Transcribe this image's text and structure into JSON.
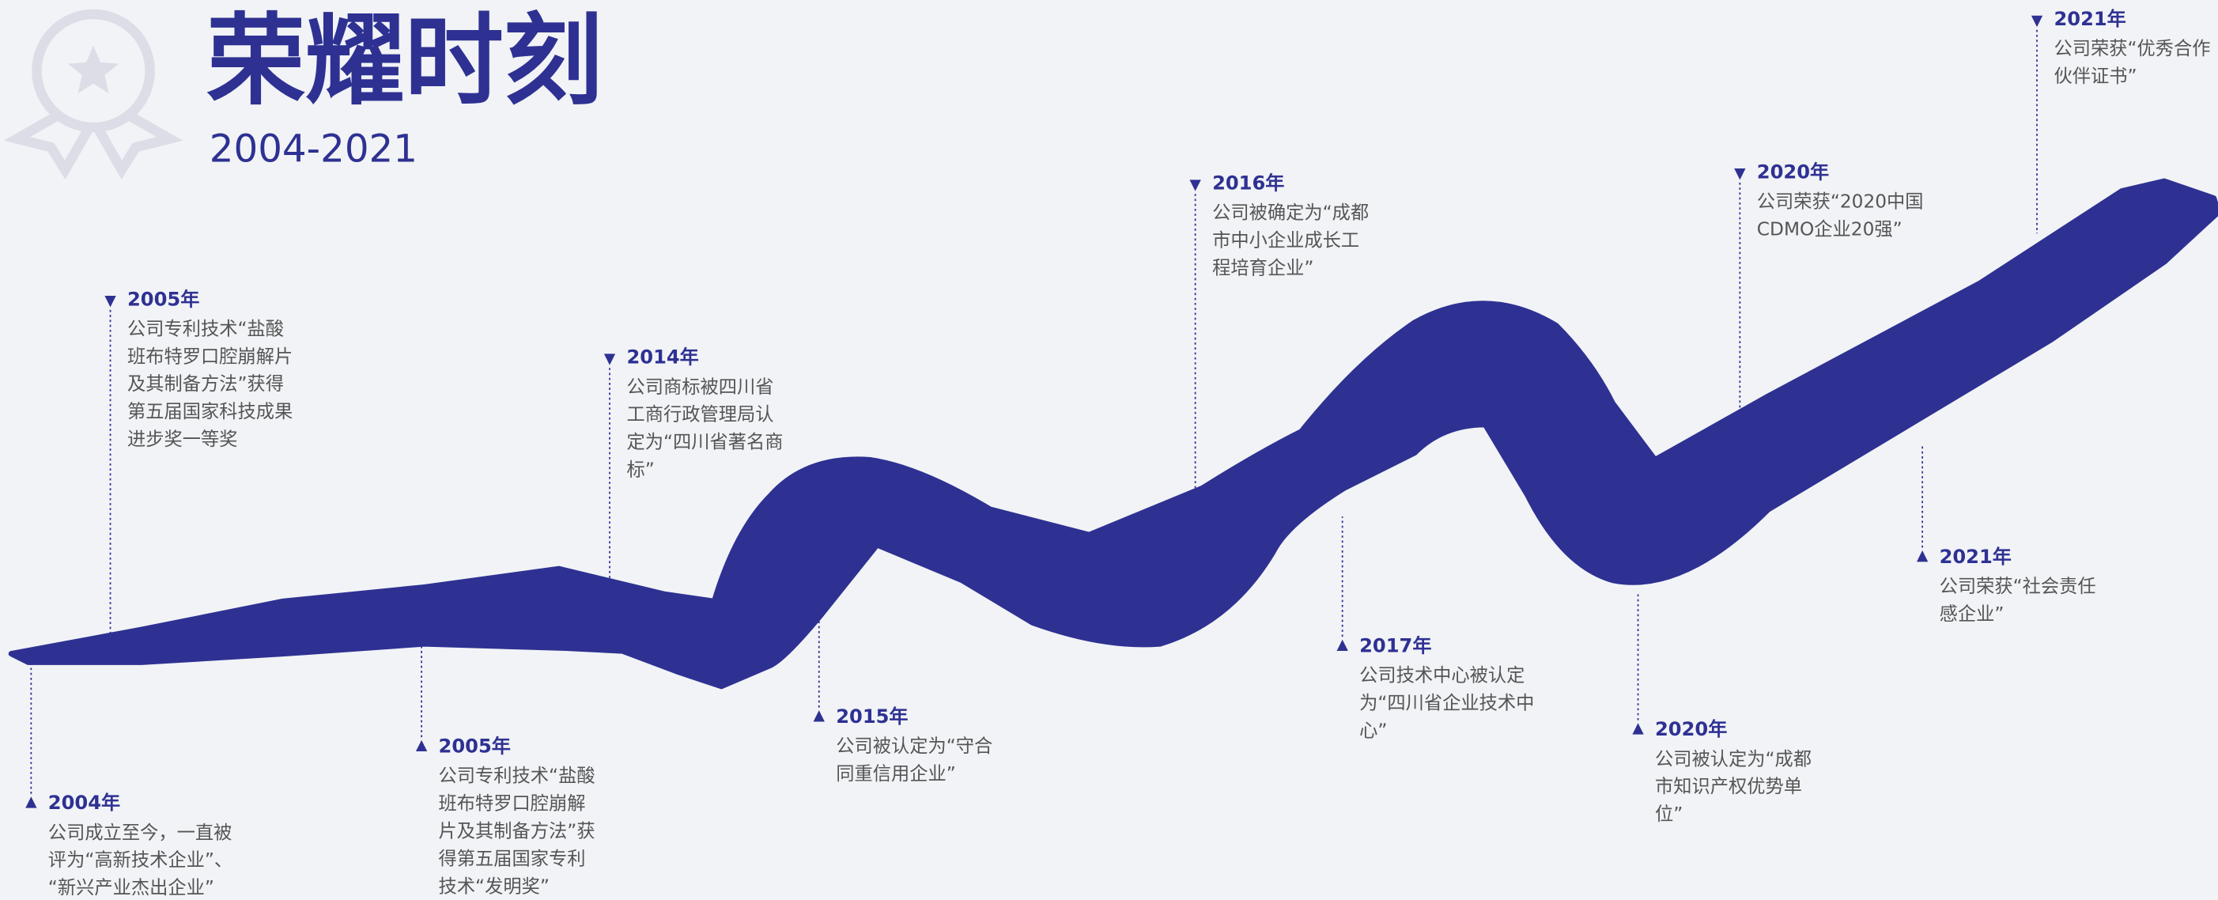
{
  "header": {
    "title": "荣耀时刻",
    "subtitle": "2004-2021"
  },
  "events": [
    {
      "year": "2004年",
      "lines": [
        "公司成立至今，一直被",
        "评为“高新技术企业”、",
        "“新兴产业杰出企业”"
      ]
    },
    {
      "year": "2005年",
      "lines": [
        "公司专利技术“盐酸",
        "班布特罗口腔崩解片",
        "及其制备方法”获得",
        "第五届国家科技成果",
        "进步奖一等奖"
      ]
    },
    {
      "year": "2005年",
      "lines": [
        "公司专利技术“盐酸",
        "班布特罗口腔崩解",
        "片及其制备方法”获",
        "得第五届国家专利",
        "技术“发明奖”"
      ]
    },
    {
      "year": "2014年",
      "lines": [
        "公司商标被四川省",
        "工商行政管理局认",
        "定为“四川省著名商",
        "标”"
      ]
    },
    {
      "year": "2015年",
      "lines": [
        "公司被认定为“守合",
        "同重信用企业”"
      ]
    },
    {
      "year": "2016年",
      "lines": [
        "公司被确定为“成都",
        "市中小企业成长工",
        "程培育企业”"
      ]
    },
    {
      "year": "2017年",
      "lines": [
        "公司技术中心被认定",
        "为“四川省企业技术中",
        "心”"
      ]
    },
    {
      "year": "2020年",
      "lines": [
        "公司荣获“2020中国",
        "CDMO企业20强”"
      ]
    },
    {
      "year": "2020年",
      "lines": [
        "公司被认定为“成都",
        "市知识产权优势单",
        "位”"
      ]
    },
    {
      "year": "2021年",
      "lines": [
        "公司荣获“社会责任",
        "感企业”"
      ]
    },
    {
      "year": "2021年",
      "lines": [
        "公司荣获“优秀合作",
        "伙伴证书”"
      ]
    }
  ]
}
